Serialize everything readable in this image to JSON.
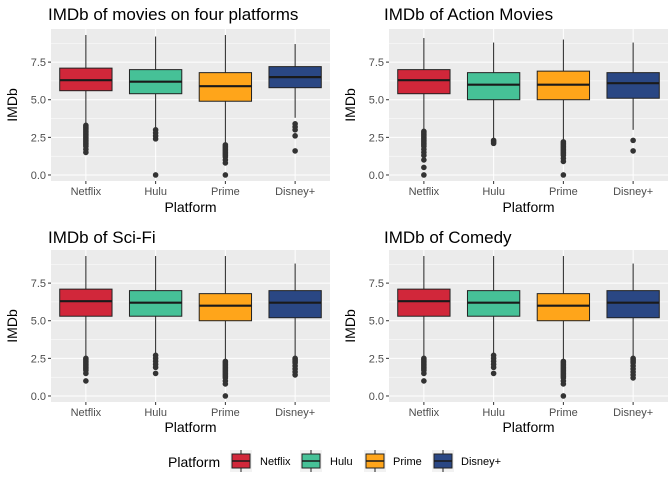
{
  "colors": {
    "panel_bg": "#EBEBEB",
    "grid": "#FFFFFF",
    "Netflix": "#D1273A",
    "Hulu": "#46C197",
    "Prime": "#FFA51A",
    "Disney+": "#2A4784",
    "box_stroke": "#222222",
    "outlier": "#333333"
  },
  "legend": {
    "title": "Platform",
    "entries": [
      "Netflix",
      "Hulu",
      "Prime",
      "Disney+"
    ],
    "placement": "bottom"
  },
  "chart_data": [
    {
      "type": "boxplot",
      "title": "IMDb of movies on four platforms",
      "xlabel": "Platform",
      "ylabel": "IMDb",
      "ylim": [
        -0.4,
        9.7
      ],
      "yticks": [
        0.0,
        2.5,
        5.0,
        7.5
      ],
      "ytick_labels": [
        "0.0",
        "2.5",
        "5.0",
        "7.5"
      ],
      "grid": true,
      "categories": [
        "Netflix",
        "Hulu",
        "Prime",
        "Disney+"
      ],
      "boxes": [
        {
          "q1": 5.6,
          "median": 6.3,
          "q3": 7.1,
          "whisker_low": 3.4,
          "whisker_high": 9.3,
          "outliers": [
            3.3,
            3.2,
            3.1,
            3.0,
            2.9,
            2.8,
            2.7,
            2.6,
            2.5,
            2.4,
            2.3,
            2.2,
            2.1,
            2.0,
            1.9,
            1.7,
            1.5
          ]
        },
        {
          "q1": 5.4,
          "median": 6.2,
          "q3": 7.0,
          "whisker_low": 3.1,
          "whisker_high": 9.2,
          "outliers": [
            3.0,
            2.8,
            2.6,
            2.4,
            0.0
          ]
        },
        {
          "q1": 4.9,
          "median": 5.9,
          "q3": 6.8,
          "whisker_low": 2.1,
          "whisker_high": 9.3,
          "outliers": [
            2.0,
            1.9,
            1.8,
            1.7,
            1.6,
            1.5,
            1.4,
            1.3,
            1.2,
            1.0,
            0.8,
            0.0
          ]
        },
        {
          "q1": 5.8,
          "median": 6.5,
          "q3": 7.2,
          "whisker_low": 3.8,
          "whisker_high": 8.7,
          "outliers": [
            3.4,
            3.2,
            3.0,
            2.6,
            1.6
          ]
        }
      ]
    },
    {
      "type": "boxplot",
      "title": "IMDb of Action Movies",
      "xlabel": "Platform",
      "ylabel": "IMDb",
      "ylim": [
        -0.4,
        9.7
      ],
      "yticks": [
        0.0,
        2.5,
        5.0,
        7.5
      ],
      "ytick_labels": [
        "0.0",
        "2.5",
        "5.0",
        "7.5"
      ],
      "grid": true,
      "categories": [
        "Netflix",
        "Hulu",
        "Prime",
        "Disney+"
      ],
      "boxes": [
        {
          "q1": 5.4,
          "median": 6.3,
          "q3": 7.0,
          "whisker_low": 3.0,
          "whisker_high": 9.1,
          "outliers": [
            2.9,
            2.8,
            2.7,
            2.6,
            2.5,
            2.4,
            2.3,
            2.2,
            2.1,
            2.0,
            1.9,
            1.7,
            1.5,
            1.3,
            1.0,
            0.5,
            0.0
          ]
        },
        {
          "q1": 5.0,
          "median": 6.0,
          "q3": 6.8,
          "whisker_low": 2.4,
          "whisker_high": 8.8,
          "outliers": [
            2.3,
            2.2,
            2.1
          ]
        },
        {
          "q1": 5.0,
          "median": 6.0,
          "q3": 6.9,
          "whisker_low": 2.3,
          "whisker_high": 9.0,
          "outliers": [
            2.2,
            2.1,
            2.0,
            1.9,
            1.8,
            1.7,
            1.6,
            1.5,
            1.4,
            1.3,
            1.1,
            0.9,
            0.0
          ]
        },
        {
          "q1": 5.1,
          "median": 6.1,
          "q3": 6.8,
          "whisker_low": 3.0,
          "whisker_high": 8.8,
          "outliers": [
            2.3,
            1.6
          ]
        }
      ]
    },
    {
      "type": "boxplot",
      "title": "IMDb of Sci-Fi",
      "xlabel": "Platform",
      "ylabel": "IMDb",
      "ylim": [
        -0.4,
        9.7
      ],
      "yticks": [
        0.0,
        2.5,
        5.0,
        7.5
      ],
      "ytick_labels": [
        "0.0",
        "2.5",
        "5.0",
        "7.5"
      ],
      "grid": true,
      "categories": [
        "Netflix",
        "Hulu",
        "Prime",
        "Disney+"
      ],
      "boxes": [
        {
          "q1": 5.3,
          "median": 6.3,
          "q3": 7.1,
          "whisker_low": 2.6,
          "whisker_high": 9.3,
          "outliers": [
            2.5,
            2.4,
            2.3,
            2.2,
            2.1,
            2.0,
            1.9,
            1.8,
            1.7,
            1.5,
            1.0
          ]
        },
        {
          "q1": 5.3,
          "median": 6.2,
          "q3": 7.0,
          "whisker_low": 2.8,
          "whisker_high": 9.3,
          "outliers": [
            2.7,
            2.5,
            2.3,
            2.1,
            1.9,
            1.5
          ]
        },
        {
          "q1": 5.0,
          "median": 6.0,
          "q3": 6.8,
          "whisker_low": 2.4,
          "whisker_high": 9.3,
          "outliers": [
            2.3,
            2.2,
            2.1,
            2.0,
            1.9,
            1.8,
            1.7,
            1.6,
            1.5,
            1.4,
            1.3,
            1.2,
            1.0,
            0.8,
            0.0
          ]
        },
        {
          "q1": 5.2,
          "median": 6.2,
          "q3": 7.0,
          "whisker_low": 2.6,
          "whisker_high": 8.8,
          "outliers": [
            2.5,
            2.4,
            2.3,
            2.2,
            2.0,
            1.8,
            1.6,
            1.4
          ]
        }
      ]
    },
    {
      "type": "boxplot",
      "title": "IMDb of Comedy",
      "xlabel": "Platform",
      "ylabel": "IMDb",
      "ylim": [
        -0.4,
        9.7
      ],
      "yticks": [
        0.0,
        2.5,
        5.0,
        7.5
      ],
      "ytick_labels": [
        "0.0",
        "2.5",
        "5.0",
        "7.5"
      ],
      "grid": true,
      "categories": [
        "Netflix",
        "Hulu",
        "Prime",
        "Disney+"
      ],
      "boxes": [
        {
          "q1": 5.3,
          "median": 6.3,
          "q3": 7.1,
          "whisker_low": 2.6,
          "whisker_high": 9.3,
          "outliers": [
            2.5,
            2.4,
            2.3,
            2.2,
            2.1,
            2.0,
            1.9,
            1.8,
            1.7,
            1.5,
            1.0
          ]
        },
        {
          "q1": 5.3,
          "median": 6.2,
          "q3": 7.0,
          "whisker_low": 2.8,
          "whisker_high": 9.3,
          "outliers": [
            2.7,
            2.5,
            2.3,
            2.1,
            1.9,
            1.5
          ]
        },
        {
          "q1": 5.0,
          "median": 6.0,
          "q3": 6.8,
          "whisker_low": 2.4,
          "whisker_high": 9.3,
          "outliers": [
            2.3,
            2.2,
            2.1,
            2.0,
            1.9,
            1.8,
            1.7,
            1.6,
            1.5,
            1.4,
            1.3,
            1.2,
            1.0,
            0.8,
            0.0
          ]
        },
        {
          "q1": 5.2,
          "median": 6.2,
          "q3": 7.0,
          "whisker_low": 2.6,
          "whisker_high": 8.8,
          "outliers": [
            2.5,
            2.4,
            2.3,
            2.2,
            2.0,
            1.8,
            1.6,
            1.4,
            1.2
          ]
        }
      ]
    }
  ]
}
